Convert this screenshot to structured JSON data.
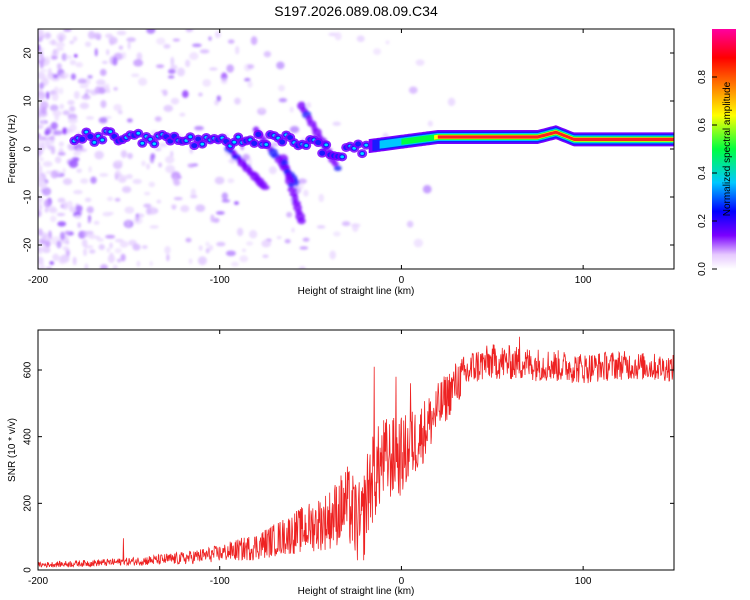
{
  "title": "S197.2026.089.08.09.C34",
  "chart_data": [
    {
      "type": "heatmap",
      "name": "spectrogram",
      "xlabel": "Height of straight line (km)",
      "ylabel": "Frequency (Hz)",
      "xlim": [
        -200,
        150
      ],
      "ylim": [
        -25,
        25
      ],
      "xticks": [
        -200,
        -100,
        0,
        100
      ],
      "yticks": [
        -20,
        -10,
        0,
        10,
        20
      ],
      "colorbar": {
        "label": "Normalized spectral amplitude",
        "range": [
          0,
          1
        ],
        "ticks": [
          "0.0",
          "0.2",
          "0.4",
          "0.6",
          "0.8"
        ],
        "tick_values": [
          0.0,
          0.2,
          0.4,
          0.6,
          0.8
        ],
        "colors": [
          "#ffffff",
          "#e6c8ff",
          "#7a00ff",
          "#0000ff",
          "#00c8ff",
          "#00ff40",
          "#ffff00",
          "#ff8000",
          "#ff0000",
          "#ff00a0"
        ]
      },
      "tone_track": [
        {
          "x": -175,
          "f": 2.5
        },
        {
          "x": -150,
          "f": 2.5
        },
        {
          "x": -125,
          "f": 2.0
        },
        {
          "x": -100,
          "f": 1.0
        },
        {
          "x": -75,
          "f": 2.0
        },
        {
          "x": -50,
          "f": 1.5
        },
        {
          "x": -35,
          "f": -1.5
        },
        {
          "x": -20,
          "f": 0.5
        },
        {
          "x": 0,
          "f": 1.5
        },
        {
          "x": 20,
          "f": 2.5
        },
        {
          "x": 50,
          "f": 2.5
        },
        {
          "x": 75,
          "f": 2.5
        },
        {
          "x": 85,
          "f": 3.5
        },
        {
          "x": 95,
          "f": 2.0
        },
        {
          "x": 150,
          "f": 2.0
        }
      ],
      "side_tracks": [
        {
          "from": [
            -95,
            0
          ],
          "to": [
            -75,
            -8
          ]
        },
        {
          "from": [
            -80,
            4
          ],
          "to": [
            -58,
            -7
          ]
        },
        {
          "from": [
            -65,
            -2
          ],
          "to": [
            -55,
            -15
          ]
        },
        {
          "from": [
            -55,
            9
          ],
          "to": [
            -35,
            -4
          ]
        }
      ]
    },
    {
      "type": "line",
      "name": "snr",
      "xlabel": "Height of straight line (km)",
      "ylabel": "SNR (10 * v/v)",
      "xlim": [
        -200,
        150
      ],
      "ylim": [
        0,
        720
      ],
      "xticks": [
        -200,
        -100,
        0,
        100
      ],
      "yticks": [
        0,
        200,
        400,
        600
      ],
      "color": "#ee2222",
      "trend": [
        {
          "x": -200,
          "y": 15
        },
        {
          "x": -150,
          "y": 25
        },
        {
          "x": -120,
          "y": 35
        },
        {
          "x": -100,
          "y": 50
        },
        {
          "x": -80,
          "y": 70
        },
        {
          "x": -60,
          "y": 110
        },
        {
          "x": -40,
          "y": 150
        },
        {
          "x": -30,
          "y": 200
        },
        {
          "x": -22,
          "y": 120
        },
        {
          "x": -18,
          "y": 250
        },
        {
          "x": -10,
          "y": 330
        },
        {
          "x": 0,
          "y": 340
        },
        {
          "x": 10,
          "y": 400
        },
        {
          "x": 20,
          "y": 480
        },
        {
          "x": 30,
          "y": 560
        },
        {
          "x": 40,
          "y": 610
        },
        {
          "x": 50,
          "y": 625
        },
        {
          "x": 80,
          "y": 615
        },
        {
          "x": 100,
          "y": 605
        },
        {
          "x": 120,
          "y": 615
        },
        {
          "x": 150,
          "y": 605
        }
      ],
      "noise": [
        {
          "x": -200,
          "a": 8
        },
        {
          "x": -150,
          "a": 12
        },
        {
          "x": -100,
          "a": 25
        },
        {
          "x": -70,
          "a": 50
        },
        {
          "x": -40,
          "a": 90
        },
        {
          "x": -20,
          "a": 140
        },
        {
          "x": 0,
          "a": 120
        },
        {
          "x": 20,
          "a": 80
        },
        {
          "x": 40,
          "a": 55
        },
        {
          "x": 150,
          "a": 40
        }
      ],
      "spikes": [
        {
          "x": -153,
          "y": 95
        },
        {
          "x": -15,
          "y": 610
        },
        {
          "x": 5,
          "y": 560
        },
        {
          "x": -3,
          "y": 580
        },
        {
          "x": 65,
          "y": 700
        }
      ]
    }
  ]
}
